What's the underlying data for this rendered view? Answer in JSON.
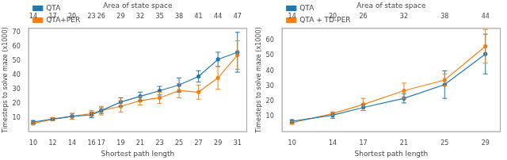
{
  "chart_data": [
    {
      "type": "line",
      "x2label": "Area of state space",
      "xlabel": "Shortest path length",
      "ylabel": "Timesteps to solve maze (x1000)",
      "x": [
        10,
        12,
        14,
        16,
        17,
        19,
        21,
        23,
        25,
        27,
        29,
        31
      ],
      "xlim": [
        9.5,
        32
      ],
      "xticks": [
        10,
        12,
        14,
        16,
        17,
        19,
        21,
        23,
        25,
        27,
        29,
        31
      ],
      "x2lim": [
        9.5,
        32
      ],
      "x2ticks": [
        {
          "value": 10,
          "label": "14"
        },
        {
          "value": 12,
          "label": "17"
        },
        {
          "value": 14,
          "label": "20"
        },
        {
          "value": 16,
          "label": "23"
        },
        {
          "value": 17,
          "label": "26"
        },
        {
          "value": 19,
          "label": "29"
        },
        {
          "value": 21,
          "label": "32"
        },
        {
          "value": 23,
          "label": "35"
        },
        {
          "value": 25,
          "label": "38"
        },
        {
          "value": 27,
          "label": "41"
        },
        {
          "value": 29,
          "label": "44"
        },
        {
          "value": 31,
          "label": "47"
        }
      ],
      "ylim": [
        0,
        73
      ],
      "yticks": [
        10,
        20,
        30,
        40,
        50,
        60,
        70
      ],
      "series": [
        {
          "name": "QTA",
          "color": "#1f77b4",
          "marker": "circle",
          "values": [
            7,
            9,
            11,
            12,
            15,
            21,
            25,
            29,
            33,
            39,
            51,
            56
          ],
          "yerr": [
            1,
            1,
            2,
            2,
            2,
            3,
            3,
            3,
            5,
            4,
            5,
            14
          ]
        },
        {
          "name": "QTA+PER",
          "color": "#ff7f0e",
          "marker": "circle",
          "values": [
            6,
            9,
            11,
            13,
            15,
            18,
            22,
            24,
            29,
            28,
            38,
            54
          ],
          "yerr": [
            1,
            1,
            2,
            2,
            3,
            4,
            3,
            4,
            5,
            5,
            8,
            10
          ]
        }
      ],
      "legend": "upper left",
      "grid": false
    },
    {
      "type": "line",
      "x2label": "Area of state space",
      "xlabel": "Shortest path length",
      "ylabel": "Timesteps to solve maze (x1000)",
      "x": [
        10,
        14,
        17,
        21,
        25,
        29
      ],
      "xlim": [
        9,
        30.5
      ],
      "xticks": [
        10,
        14,
        17,
        21,
        25,
        29
      ],
      "x2lim": [
        9,
        30.5
      ],
      "x2ticks": [
        {
          "value": 10,
          "label": "14"
        },
        {
          "value": 14,
          "label": "20"
        },
        {
          "value": 17,
          "label": "26"
        },
        {
          "value": 21,
          "label": "32"
        },
        {
          "value": 25,
          "label": "38"
        },
        {
          "value": 29,
          "label": "44"
        }
      ],
      "ylim": [
        0,
        68
      ],
      "yticks": [
        10,
        20,
        30,
        40,
        50,
        60
      ],
      "series": [
        {
          "name": "QTA",
          "color": "#1f77b4",
          "marker": "circle",
          "values": [
            7,
            11,
            16,
            22,
            31,
            51
          ],
          "yerr": [
            1,
            2,
            2,
            3,
            9,
            13
          ]
        },
        {
          "name": "QTA + TD-PER",
          "color": "#ff7f0e",
          "marker": "circle",
          "values": [
            6,
            12,
            18,
            27,
            34,
            56
          ],
          "yerr": [
            1,
            1,
            4,
            5,
            4,
            11
          ]
        }
      ],
      "legend": "upper left",
      "grid": false
    }
  ]
}
